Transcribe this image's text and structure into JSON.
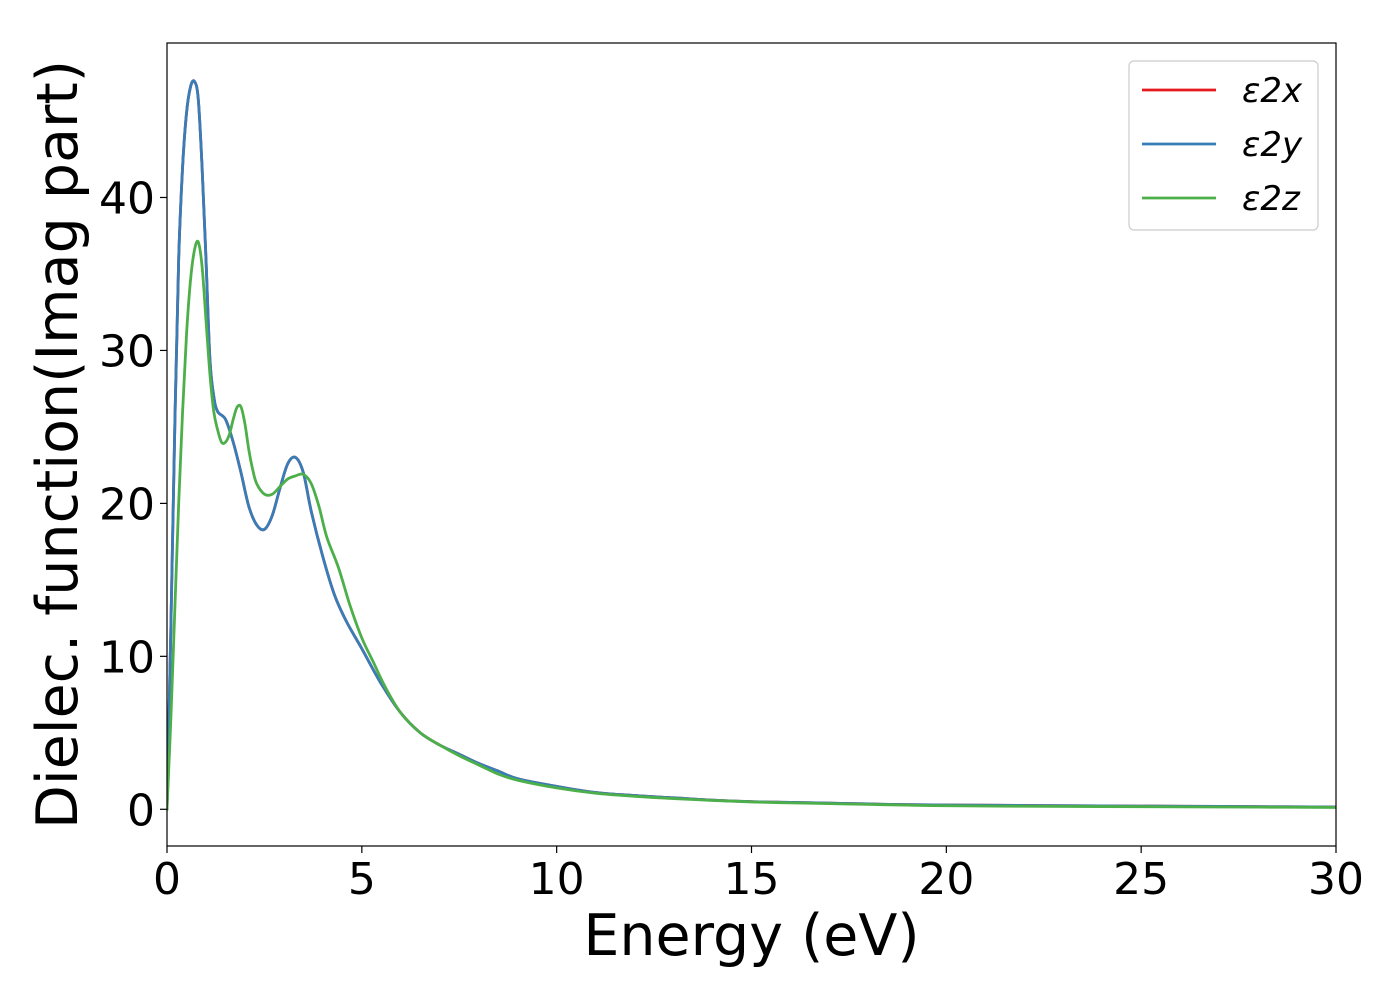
{
  "chart_data": {
    "type": "line",
    "title": "",
    "xlabel": "Energy (eV)",
    "ylabel": "Dielec. function(Imag part)",
    "xlim": [
      0,
      30
    ],
    "ylim": [
      -2.4,
      50.1
    ],
    "xticks": [
      0,
      5,
      10,
      15,
      20,
      25,
      30
    ],
    "xtick_labels": [
      "0",
      "5",
      "10",
      "15",
      "20",
      "25",
      "30"
    ],
    "yticks": [
      0,
      10,
      20,
      30,
      40
    ],
    "ytick_labels": [
      "0",
      "10",
      "20",
      "30",
      "40"
    ],
    "grid": false,
    "legend_position": "top-right",
    "series": [
      {
        "name": "ε2x",
        "color": "#e41a1c",
        "x": [
          0,
          0.1,
          0.2,
          0.3,
          0.4,
          0.5,
          0.6,
          0.7,
          0.8,
          0.9,
          1.0,
          1.1,
          1.2,
          1.3,
          1.5,
          1.7,
          1.9,
          2.1,
          2.3,
          2.5,
          2.7,
          2.9,
          3.1,
          3.3,
          3.5,
          3.7,
          4.0,
          4.3,
          4.6,
          5.0,
          5.5,
          6.0,
          6.5,
          7.0,
          7.5,
          8.0,
          8.5,
          9.0,
          10.0,
          11.0,
          12.0,
          13.0,
          14.0,
          15.0,
          16.0,
          17.0,
          18.0,
          19.0,
          20.0,
          22.0,
          24.0,
          26.0,
          28.0,
          30.0
        ],
        "y": [
          0,
          12,
          25,
          36,
          42,
          45.5,
          47.2,
          47.6,
          46.5,
          42,
          36,
          29.5,
          27,
          26,
          25.5,
          24,
          22,
          19.8,
          18.6,
          18.3,
          19.2,
          21,
          22.6,
          23,
          22,
          19.5,
          16.5,
          14,
          12.3,
          10.5,
          8.2,
          6.3,
          5,
          4.2,
          3.6,
          3,
          2.5,
          2,
          1.5,
          1.1,
          0.9,
          0.75,
          0.6,
          0.5,
          0.45,
          0.4,
          0.35,
          0.3,
          0.28,
          0.25,
          0.22,
          0.2,
          0.17,
          0.15
        ]
      },
      {
        "name": "ε2y",
        "color": "#377eb8",
        "x": [
          0,
          0.1,
          0.2,
          0.3,
          0.4,
          0.5,
          0.6,
          0.7,
          0.8,
          0.9,
          1.0,
          1.1,
          1.2,
          1.3,
          1.5,
          1.7,
          1.9,
          2.1,
          2.3,
          2.5,
          2.7,
          2.9,
          3.1,
          3.3,
          3.5,
          3.7,
          4.0,
          4.3,
          4.6,
          5.0,
          5.5,
          6.0,
          6.5,
          7.0,
          7.5,
          8.0,
          8.5,
          9.0,
          10.0,
          11.0,
          12.0,
          13.0,
          14.0,
          15.0,
          16.0,
          17.0,
          18.0,
          19.0,
          20.0,
          22.0,
          24.0,
          26.0,
          28.0,
          30.0
        ],
        "y": [
          0,
          12,
          25,
          36,
          42,
          45.5,
          47.2,
          47.6,
          46.5,
          42,
          36,
          29.5,
          27,
          26,
          25.5,
          24,
          22,
          19.8,
          18.6,
          18.3,
          19.2,
          21,
          22.6,
          23,
          22,
          19.5,
          16.5,
          14,
          12.3,
          10.5,
          8.2,
          6.3,
          5,
          4.2,
          3.6,
          3,
          2.5,
          2,
          1.5,
          1.1,
          0.9,
          0.75,
          0.6,
          0.5,
          0.45,
          0.4,
          0.35,
          0.3,
          0.28,
          0.25,
          0.22,
          0.2,
          0.17,
          0.15
        ]
      },
      {
        "name": "ε2z",
        "color": "#4daf4a",
        "x": [
          0,
          0.1,
          0.2,
          0.3,
          0.4,
          0.5,
          0.6,
          0.7,
          0.8,
          0.9,
          1.0,
          1.1,
          1.2,
          1.3,
          1.4,
          1.5,
          1.6,
          1.7,
          1.8,
          1.9,
          2.0,
          2.1,
          2.2,
          2.3,
          2.5,
          2.7,
          2.9,
          3.1,
          3.3,
          3.5,
          3.7,
          3.9,
          4.1,
          4.4,
          4.7,
          5.0,
          5.3,
          5.6,
          6.0,
          6.5,
          7.0,
          7.5,
          8.0,
          8.5,
          9.0,
          10.0,
          11.0,
          12.0,
          13.0,
          14.0,
          15.0,
          16.0,
          17.0,
          18.0,
          19.0,
          20.0,
          22.0,
          24.0,
          26.0,
          28.0,
          30.0
        ],
        "y": [
          0,
          6,
          13,
          20,
          26,
          31,
          34.5,
          36.5,
          37.1,
          35.5,
          32,
          28.5,
          26,
          24.8,
          24,
          24,
          24.5,
          25.5,
          26.3,
          26.3,
          25.2,
          23.5,
          22.2,
          21.3,
          20.6,
          20.6,
          21.1,
          21.6,
          21.8,
          21.9,
          21.3,
          19.8,
          17.8,
          15.8,
          13.3,
          11.2,
          9.6,
          8,
          6.3,
          5,
          4.2,
          3.5,
          2.9,
          2.3,
          1.9,
          1.4,
          1.05,
          0.85,
          0.7,
          0.58,
          0.48,
          0.42,
          0.37,
          0.32,
          0.27,
          0.23,
          0.2,
          0.18,
          0.16,
          0.14,
          0.12
        ]
      }
    ]
  }
}
